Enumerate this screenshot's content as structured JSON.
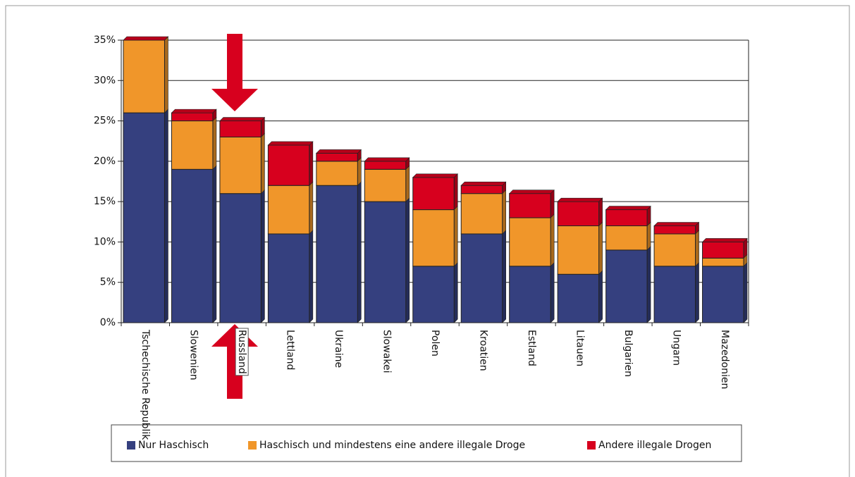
{
  "chart_data": {
    "type": "bar",
    "categories": [
      "Tschechische Republik",
      "Slowenien",
      "Russland",
      "Lettland",
      "Ukraine",
      "Slowakei",
      "Polen",
      "Kroatien",
      "Estland",
      "Litauen",
      "Bulgarien",
      "Ungarn",
      "Mazedonien"
    ],
    "series": [
      {
        "name": "Nur Haschisch",
        "color": "#35407f",
        "values": [
          26,
          19,
          16,
          11,
          17,
          15,
          7,
          11,
          7,
          6,
          9,
          7,
          7
        ]
      },
      {
        "name": "Haschisch und mindestens eine andere illegale Droge",
        "color": "#f0962a",
        "values": [
          9,
          6,
          7,
          6,
          3,
          4,
          7,
          5,
          6,
          6,
          3,
          4,
          1
        ]
      },
      {
        "name": "Andere illegale Drogen",
        "color": "#d7001e",
        "values": [
          0,
          1,
          2,
          5,
          1,
          1,
          4,
          1,
          3,
          3,
          2,
          1,
          2
        ]
      }
    ],
    "ylim": [
      0,
      35
    ],
    "yticks": [
      {
        "value": 0,
        "label": "0%"
      },
      {
        "value": 5,
        "label": "5%"
      },
      {
        "value": 10,
        "label": "10%"
      },
      {
        "value": 15,
        "label": "15%"
      },
      {
        "value": 20,
        "label": "20%"
      },
      {
        "value": 25,
        "label": "25%"
      },
      {
        "value": 30,
        "label": "30%"
      },
      {
        "value": 35,
        "label": "35%"
      }
    ],
    "grid": true,
    "stacked": true
  }
}
